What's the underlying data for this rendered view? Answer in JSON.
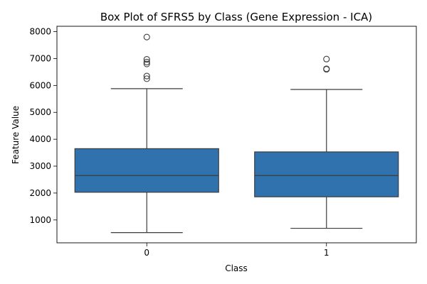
{
  "chart_data": {
    "type": "box",
    "title": "Box Plot of SFRS5 by Class (Gene Expression - ICA)",
    "xlabel": "Class",
    "ylabel": "Feature Value",
    "categories": [
      "0",
      "1"
    ],
    "ylim": [
      150,
      8200
    ],
    "yticks": [
      1000,
      2000,
      3000,
      4000,
      5000,
      6000,
      7000,
      8000
    ],
    "grid": false,
    "box_color": "#2f72ad",
    "line_color": "#3d3d3d",
    "boxes": [
      {
        "category": "0",
        "whisker_low": 530,
        "q1": 2030,
        "median": 2650,
        "q3": 3650,
        "whisker_high": 5880,
        "outliers": [
          6250,
          6350,
          6800,
          6870,
          6970,
          7800
        ]
      },
      {
        "category": "1",
        "whisker_low": 690,
        "q1": 1860,
        "median": 2650,
        "q3": 3530,
        "whisker_high": 5850,
        "outliers": [
          6600,
          6620,
          6980
        ]
      }
    ]
  }
}
